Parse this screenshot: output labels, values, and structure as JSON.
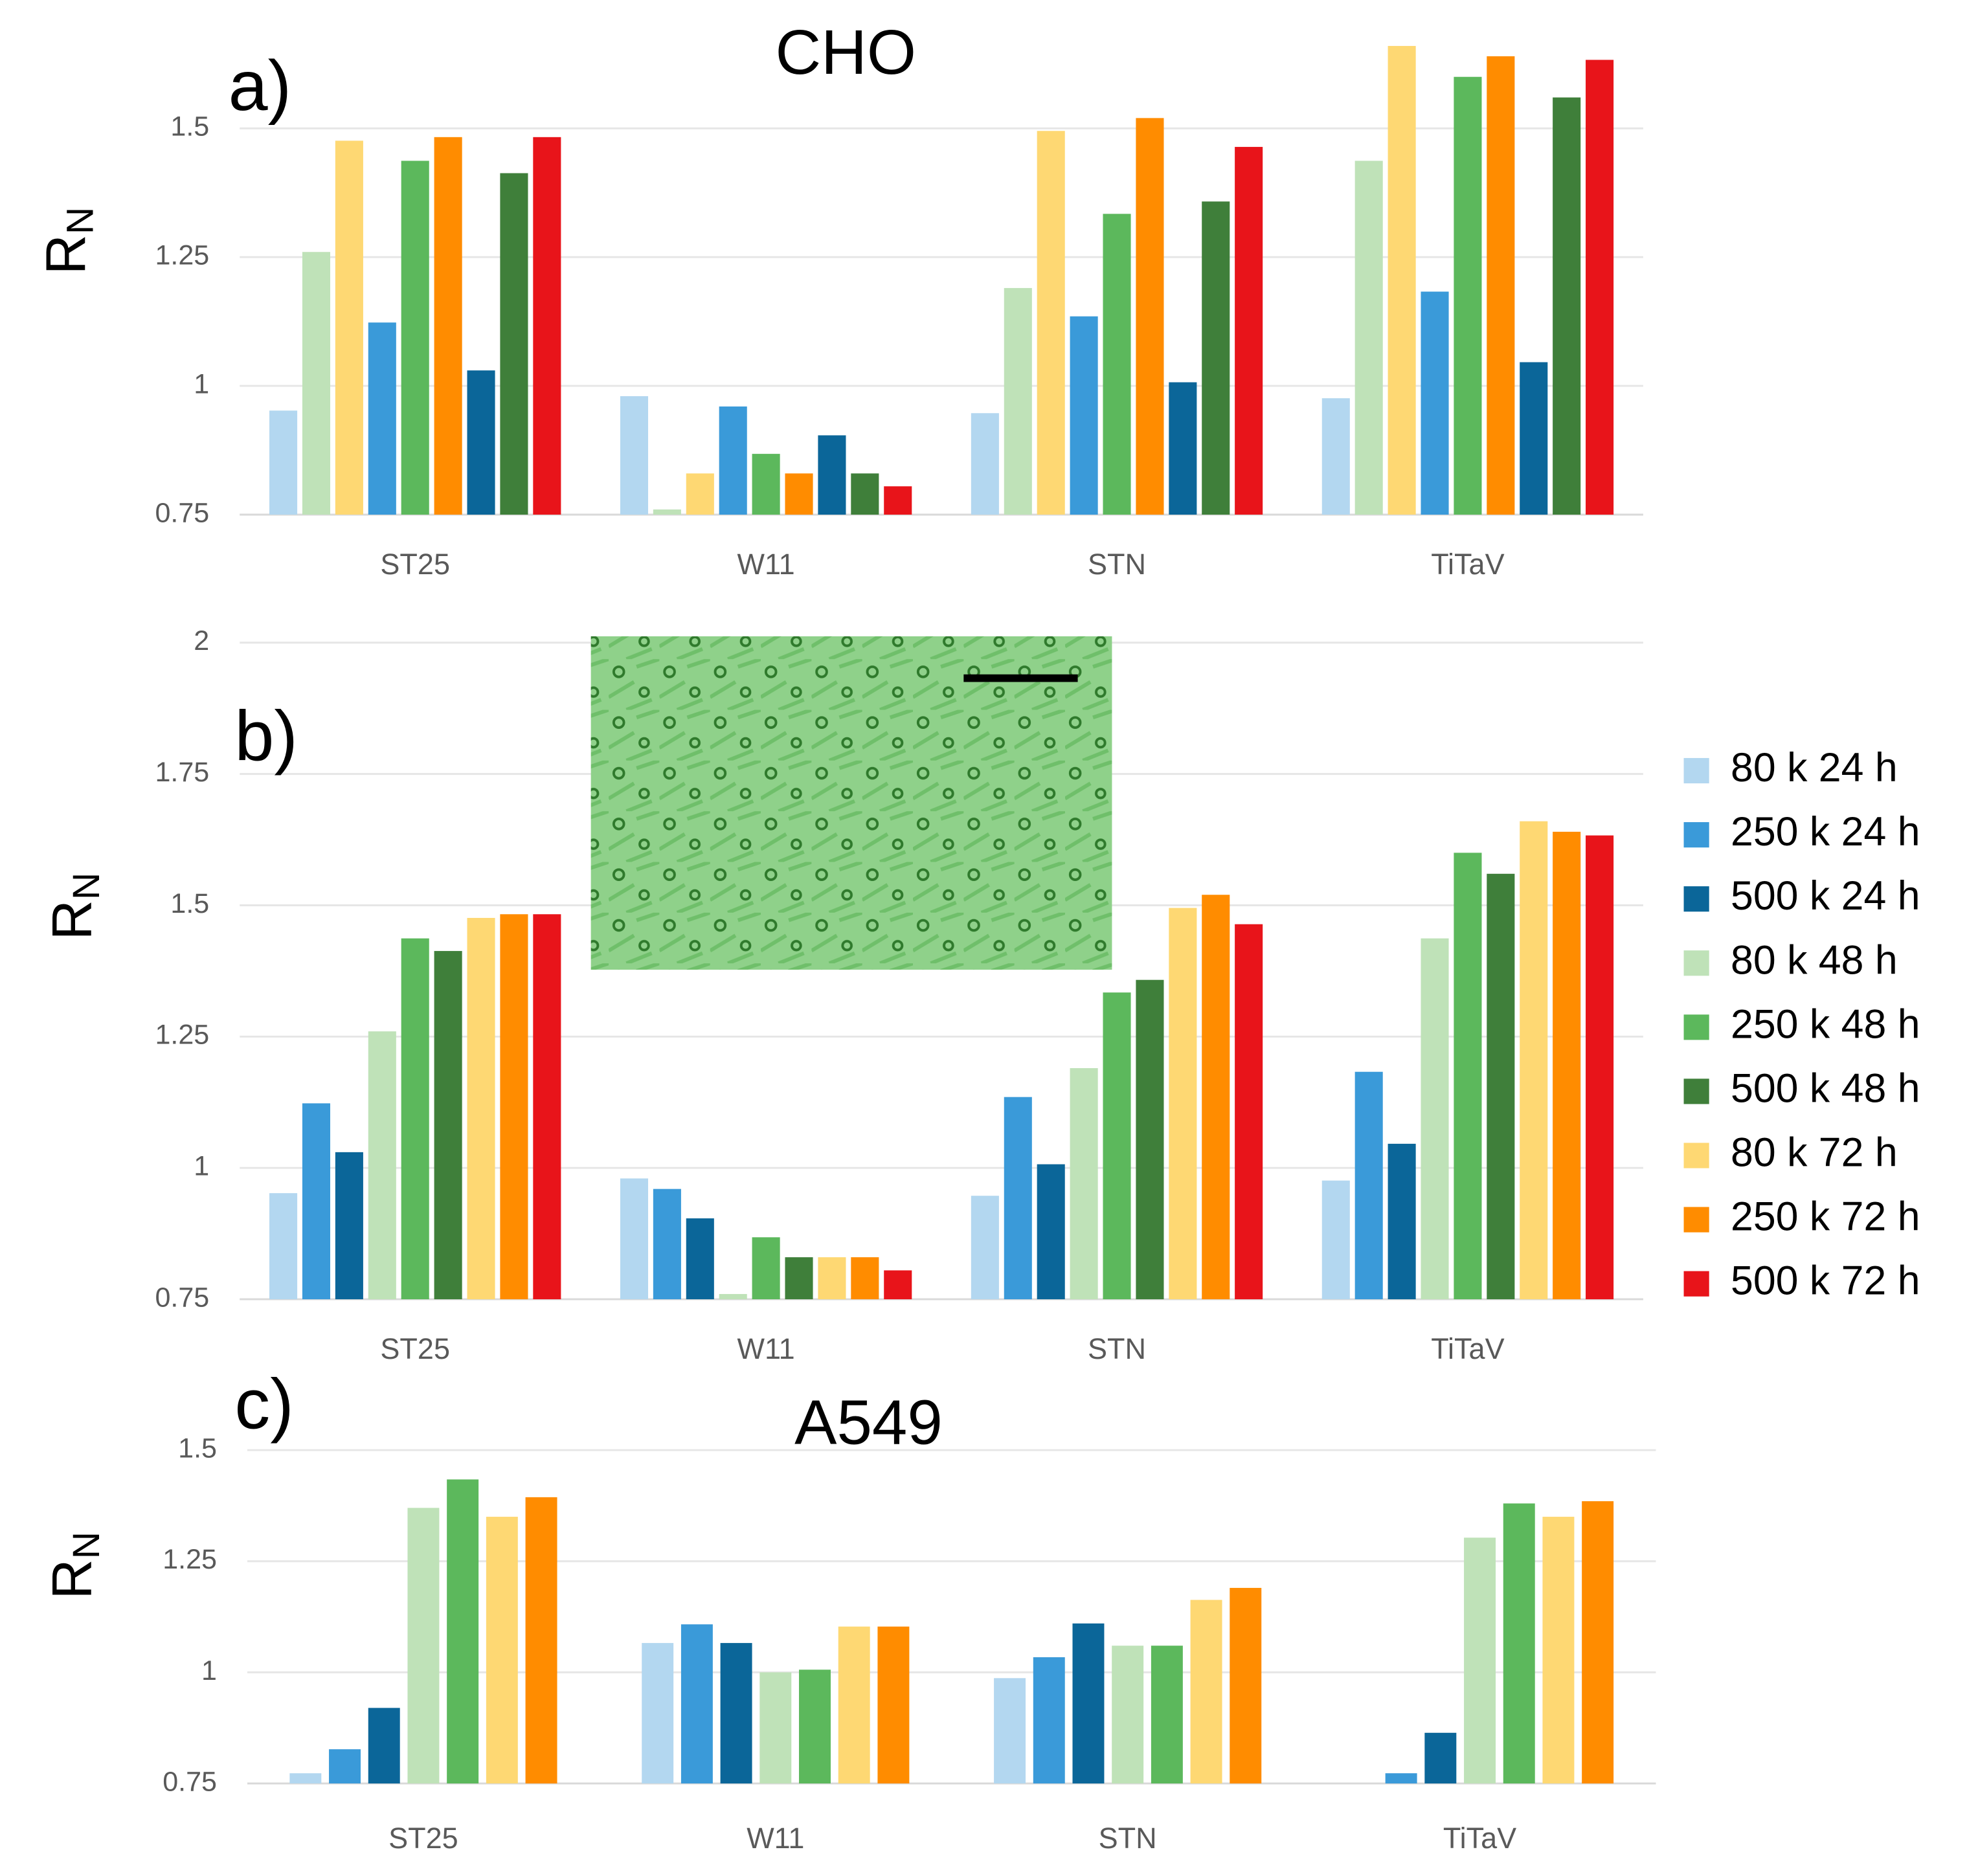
{
  "chart_data": [
    {
      "type": "bar",
      "title": "CHO",
      "annotation": "a)",
      "ylabel": "R",
      "ylabel_subscript": "N",
      "categories": [
        "ST25",
        "W11",
        "STN",
        "TiTaV"
      ],
      "ylim": [
        0.75,
        1.7
      ],
      "yticks": [
        0.75,
        1,
        1.25,
        1.5
      ],
      "grid": true,
      "series": [
        {
          "color": "#b3d7f0",
          "values": [
            0.952,
            0.98,
            0.947,
            0.976
          ]
        },
        {
          "color": "#bfe2b8",
          "values": [
            1.26,
            0.76,
            1.19,
            1.437
          ]
        },
        {
          "color": "#fed873",
          "values": [
            1.476,
            0.83,
            1.495,
            1.66
          ]
        },
        {
          "color": "#3a9ad9",
          "values": [
            1.123,
            0.96,
            1.135,
            1.183
          ]
        },
        {
          "color": "#5cb85c",
          "values": [
            1.437,
            0.868,
            1.334,
            1.6
          ]
        },
        {
          "color": "#ff8c00",
          "values": [
            1.483,
            0.83,
            1.52,
            1.64
          ]
        },
        {
          "color": "#0b6699",
          "values": [
            1.03,
            0.904,
            1.007,
            1.046
          ]
        },
        {
          "color": "#3f7f3a",
          "values": [
            1.413,
            0.83,
            1.358,
            1.56
          ]
        },
        {
          "color": "#e8141a",
          "values": [
            1.483,
            0.805,
            1.464,
            1.633
          ]
        }
      ]
    },
    {
      "type": "bar",
      "annotation": "b)",
      "ylabel": "R",
      "ylabel_subscript": "N",
      "categories": [
        "ST25",
        "W11",
        "STN",
        "TiTaV"
      ],
      "ylim": [
        0.75,
        2
      ],
      "yticks": [
        0.75,
        1,
        1.25,
        1.5,
        1.75,
        2
      ],
      "grid": true,
      "series": [
        {
          "name": "80 k 24 h",
          "color": "#b3d7f0",
          "values": [
            0.952,
            0.98,
            0.947,
            0.976
          ]
        },
        {
          "name": "250 k 24 h",
          "color": "#3a9ad9",
          "values": [
            1.123,
            0.96,
            1.135,
            1.183
          ]
        },
        {
          "name": "500 k 24 h",
          "color": "#0b6699",
          "values": [
            1.03,
            0.904,
            1.007,
            1.046
          ]
        },
        {
          "name": "80 k 48 h",
          "color": "#bfe2b8",
          "values": [
            1.26,
            0.76,
            1.19,
            1.437
          ]
        },
        {
          "name": "250 k 48 h",
          "color": "#5cb85c",
          "values": [
            1.437,
            0.868,
            1.334,
            1.6
          ]
        },
        {
          "name": "500 k 48 h",
          "color": "#3f7f3a",
          "values": [
            1.413,
            0.83,
            1.358,
            1.56
          ]
        },
        {
          "name": "80 k 72 h",
          "color": "#fed873",
          "values": [
            1.476,
            0.83,
            1.495,
            1.66
          ]
        },
        {
          "name": "250 k 72 h",
          "color": "#ff8c00",
          "values": [
            1.483,
            0.83,
            1.52,
            1.64
          ]
        },
        {
          "name": "500 k 72 h",
          "color": "#e8141a",
          "values": [
            1.483,
            0.805,
            1.464,
            1.633
          ]
        }
      ]
    },
    {
      "type": "bar",
      "title": "A549",
      "annotation": "c)",
      "ylabel": "R",
      "ylabel_subscript": "N",
      "categories": [
        "ST25",
        "W11",
        "STN",
        "TiTaV"
      ],
      "ylim": [
        0.75,
        1.5
      ],
      "yticks": [
        0.75,
        1,
        1.25,
        1.5
      ],
      "grid": true,
      "series": [
        {
          "color": "#b3d7f0",
          "values": [
            0.773,
            1.066,
            0.987,
            null
          ]
        },
        {
          "color": "#3a9ad9",
          "values": [
            0.827,
            1.108,
            1.034,
            0.773
          ]
        },
        {
          "color": "#0b6699",
          "values": [
            0.92,
            1.066,
            1.11,
            0.864
          ]
        },
        {
          "color": "#bfe2b8",
          "values": [
            1.37,
            1.0,
            1.06,
            1.303
          ]
        },
        {
          "color": "#5cb85c",
          "values": [
            1.434,
            1.006,
            1.06,
            1.38
          ]
        },
        {
          "color": "#fed873",
          "values": [
            1.35,
            1.103,
            1.163,
            1.35
          ]
        },
        {
          "color": "#ff8c00",
          "values": [
            1.394,
            1.103,
            1.19,
            1.385
          ]
        }
      ]
    }
  ]
}
